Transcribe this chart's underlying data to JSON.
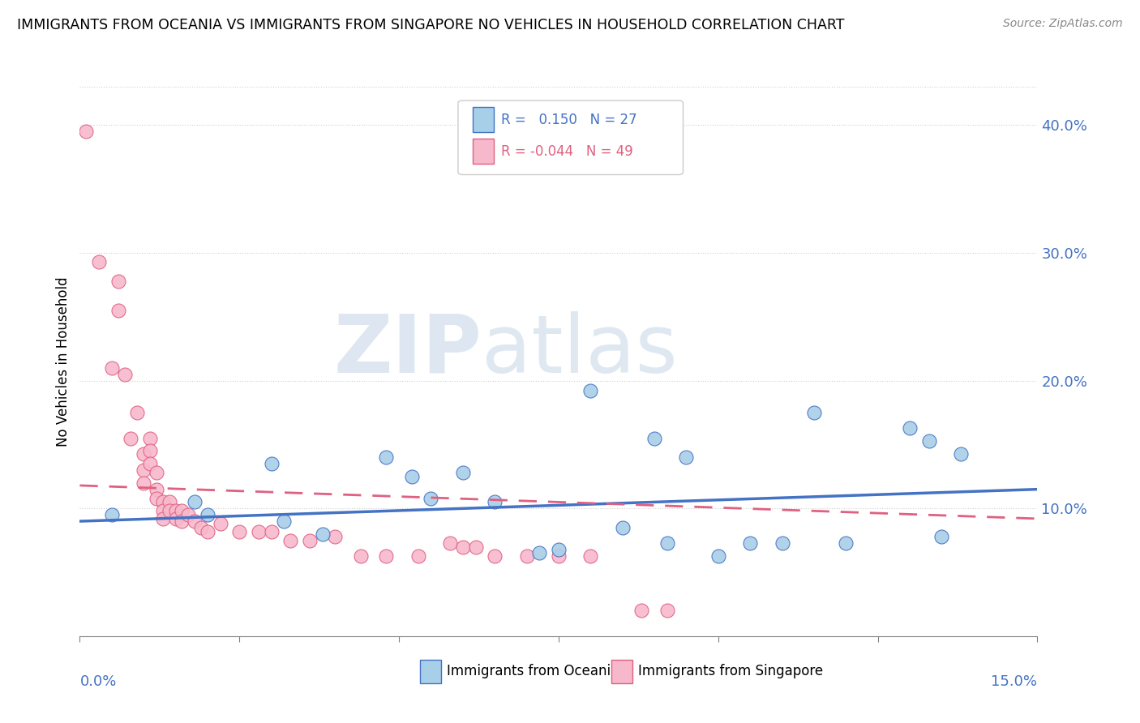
{
  "title": "IMMIGRANTS FROM OCEANIA VS IMMIGRANTS FROM SINGAPORE NO VEHICLES IN HOUSEHOLD CORRELATION CHART",
  "source": "Source: ZipAtlas.com",
  "ylabel": "No Vehicles in Household",
  "ytick_vals": [
    0.1,
    0.2,
    0.3,
    0.4
  ],
  "xlim": [
    0.0,
    0.15
  ],
  "ylim": [
    0.0,
    0.43
  ],
  "legend_oceania": {
    "R": "0.150",
    "N": "27"
  },
  "legend_singapore": {
    "R": "-0.044",
    "N": "49"
  },
  "color_oceania": "#a8cfe8",
  "color_singapore": "#f7b8cc",
  "color_line_oceania": "#4472c4",
  "color_line_singapore": "#e06080",
  "oceania_points": [
    [
      0.005,
      0.095
    ],
    [
      0.018,
      0.105
    ],
    [
      0.02,
      0.095
    ],
    [
      0.03,
      0.135
    ],
    [
      0.032,
      0.09
    ],
    [
      0.038,
      0.08
    ],
    [
      0.048,
      0.14
    ],
    [
      0.052,
      0.125
    ],
    [
      0.055,
      0.108
    ],
    [
      0.06,
      0.128
    ],
    [
      0.065,
      0.105
    ],
    [
      0.072,
      0.065
    ],
    [
      0.075,
      0.068
    ],
    [
      0.08,
      0.192
    ],
    [
      0.085,
      0.085
    ],
    [
      0.09,
      0.155
    ],
    [
      0.092,
      0.073
    ],
    [
      0.095,
      0.14
    ],
    [
      0.1,
      0.063
    ],
    [
      0.105,
      0.073
    ],
    [
      0.11,
      0.073
    ],
    [
      0.115,
      0.175
    ],
    [
      0.12,
      0.073
    ],
    [
      0.13,
      0.163
    ],
    [
      0.133,
      0.153
    ],
    [
      0.135,
      0.078
    ],
    [
      0.138,
      0.143
    ]
  ],
  "singapore_points": [
    [
      0.001,
      0.395
    ],
    [
      0.003,
      0.293
    ],
    [
      0.005,
      0.21
    ],
    [
      0.006,
      0.278
    ],
    [
      0.006,
      0.255
    ],
    [
      0.007,
      0.205
    ],
    [
      0.008,
      0.155
    ],
    [
      0.009,
      0.175
    ],
    [
      0.01,
      0.143
    ],
    [
      0.01,
      0.13
    ],
    [
      0.01,
      0.12
    ],
    [
      0.011,
      0.155
    ],
    [
      0.011,
      0.145
    ],
    [
      0.011,
      0.135
    ],
    [
      0.012,
      0.128
    ],
    [
      0.012,
      0.115
    ],
    [
      0.012,
      0.108
    ],
    [
      0.013,
      0.105
    ],
    [
      0.013,
      0.098
    ],
    [
      0.013,
      0.092
    ],
    [
      0.014,
      0.105
    ],
    [
      0.014,
      0.098
    ],
    [
      0.015,
      0.098
    ],
    [
      0.015,
      0.092
    ],
    [
      0.016,
      0.098
    ],
    [
      0.016,
      0.09
    ],
    [
      0.017,
      0.095
    ],
    [
      0.018,
      0.09
    ],
    [
      0.019,
      0.085
    ],
    [
      0.02,
      0.082
    ],
    [
      0.022,
      0.088
    ],
    [
      0.025,
      0.082
    ],
    [
      0.028,
      0.082
    ],
    [
      0.03,
      0.082
    ],
    [
      0.033,
      0.075
    ],
    [
      0.036,
      0.075
    ],
    [
      0.04,
      0.078
    ],
    [
      0.044,
      0.063
    ],
    [
      0.048,
      0.063
    ],
    [
      0.053,
      0.063
    ],
    [
      0.058,
      0.073
    ],
    [
      0.06,
      0.07
    ],
    [
      0.062,
      0.07
    ],
    [
      0.065,
      0.063
    ],
    [
      0.07,
      0.063
    ],
    [
      0.075,
      0.063
    ],
    [
      0.08,
      0.063
    ],
    [
      0.088,
      0.02
    ],
    [
      0.092,
      0.02
    ]
  ],
  "oceania_trend": [
    0.0,
    0.15,
    0.09,
    0.115
  ],
  "singapore_trend": [
    0.0,
    0.15,
    0.118,
    0.092
  ],
  "background_color": "#ffffff",
  "watermark_zip": "ZIP",
  "watermark_atlas": "atlas",
  "grid_color": "#d0d0d0"
}
